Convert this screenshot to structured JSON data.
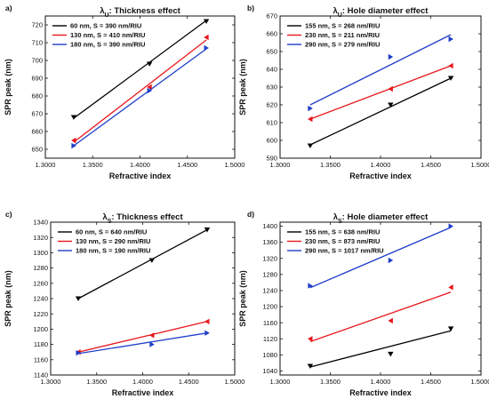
{
  "chart_data": [
    {
      "type": "line",
      "panel_label": "a)",
      "title_symbol": "λ",
      "title_sub": "U",
      "title_rest": ": Thickness effect",
      "xlabel": "Refractive index",
      "ylabel": "SPR peak (nm)",
      "xlim": [
        1.3,
        1.5
      ],
      "ylim": [
        645,
        725
      ],
      "xticks": [
        "1.3000",
        "1.3500",
        "1.4000",
        "1.4500",
        "1.5000"
      ],
      "xtick_values": [
        1.3,
        1.35,
        1.4,
        1.45,
        1.5
      ],
      "yticks": [
        "650",
        "660",
        "670",
        "680",
        "690",
        "700",
        "710",
        "720"
      ],
      "ytick_values": [
        650,
        660,
        670,
        680,
        690,
        700,
        710,
        720
      ],
      "legend_position": "top-left",
      "series": [
        {
          "name": "60 nm, S = 390 nm/RIU",
          "color": "#000000",
          "x": [
            1.33,
            1.41,
            1.47
          ],
          "y": [
            668,
            698,
            722
          ],
          "fit": [
            667.5,
            722.5
          ]
        },
        {
          "name": "130 nm, S = 410 nm/RIU",
          "color": "#e8161b",
          "x": [
            1.33,
            1.41,
            1.47
          ],
          "y": [
            655,
            685,
            713
          ],
          "fit": [
            654.0,
            711.5
          ]
        },
        {
          "name": "180 nm, S = 390 nm/RIU",
          "color": "#1f3ec8",
          "x": [
            1.33,
            1.41,
            1.47
          ],
          "y": [
            652,
            683,
            707
          ],
          "fit": [
            652.0,
            706.5
          ]
        }
      ]
    },
    {
      "type": "line",
      "panel_label": "b)",
      "title_symbol": "λ",
      "title_sub": "U",
      "title_rest": ": Hole diameter effect",
      "xlabel": "Refractive index",
      "ylabel": "SPR peak (nm)",
      "xlim": [
        1.3,
        1.5
      ],
      "ylim": [
        590,
        670
      ],
      "xticks": [
        "1.3000",
        "1.3500",
        "1.4000",
        "1.4500",
        "1.5000"
      ],
      "xtick_values": [
        1.3,
        1.35,
        1.4,
        1.45,
        1.5
      ],
      "yticks": [
        "590",
        "600",
        "610",
        "620",
        "630",
        "640",
        "650",
        "660",
        "670"
      ],
      "ytick_values": [
        590,
        600,
        610,
        620,
        630,
        640,
        650,
        660,
        670
      ],
      "legend_position": "top-left",
      "series": [
        {
          "name": "155 nm, S = 268 nm/RIU",
          "color": "#000000",
          "x": [
            1.33,
            1.41,
            1.47
          ],
          "y": [
            597,
            620,
            635
          ],
          "fit": [
            597.5,
            635.0
          ]
        },
        {
          "name": "230 nm, S = 211 nm/RIU",
          "color": "#e8161b",
          "x": [
            1.33,
            1.41,
            1.47
          ],
          "y": [
            612,
            629,
            642
          ],
          "fit": [
            612.0,
            642.0
          ]
        },
        {
          "name": "290 nm, S = 279 nm/RIU",
          "color": "#1f3ec8",
          "x": [
            1.33,
            1.41,
            1.47
          ],
          "y": [
            618,
            647,
            657
          ],
          "fit": [
            620.0,
            659.5
          ]
        }
      ]
    },
    {
      "type": "line",
      "panel_label": "c)",
      "title_symbol": "λ",
      "title_sub": "S",
      "title_rest": ": Thickness effect",
      "xlabel": "Refractive index",
      "ylabel": "SPR peak (nm)",
      "xlim": [
        1.3,
        1.5
      ],
      "ylim": [
        1140,
        1340
      ],
      "xticks": [
        "1.3000",
        "1.3500",
        "1.4000",
        "1.4500",
        "1.5000"
      ],
      "xtick_values": [
        1.3,
        1.35,
        1.4,
        1.45,
        1.5
      ],
      "yticks": [
        "1140",
        "1160",
        "1180",
        "1200",
        "1220",
        "1240",
        "1260",
        "1280",
        "1300",
        "1320",
        "1340"
      ],
      "ytick_values": [
        1140,
        1160,
        1180,
        1200,
        1220,
        1240,
        1260,
        1280,
        1300,
        1320,
        1340
      ],
      "legend_position": "top-left",
      "series": [
        {
          "name": "60 nm, S = 640 nm/RIU",
          "color": "#000000",
          "x": [
            1.33,
            1.41,
            1.47
          ],
          "y": [
            1240,
            1290,
            1330
          ],
          "fit": [
            1240,
            1330
          ]
        },
        {
          "name": "130 nm, S = 290 nm/RIU",
          "color": "#e8161b",
          "x": [
            1.33,
            1.41,
            1.47
          ],
          "y": [
            1170,
            1192,
            1210
          ],
          "fit": [
            1170,
            1210
          ]
        },
        {
          "name": "180 nm, S = 190 nm/RIU",
          "color": "#1f3ec8",
          "x": [
            1.33,
            1.41,
            1.47
          ],
          "y": [
            1169,
            1180,
            1195
          ],
          "fit": [
            1168,
            1195
          ]
        }
      ]
    },
    {
      "type": "line",
      "panel_label": "d)",
      "title_symbol": "λ",
      "title_sub": "S",
      "title_rest": ": Hole diameter effect",
      "xlabel": "Refractive index",
      "ylabel": "SPR peak (nm)",
      "xlim": [
        1.3,
        1.5
      ],
      "ylim": [
        1030,
        1410
      ],
      "xticks": [
        "1.3000",
        "1.3500",
        "1.4000",
        "1.4500",
        "1.5000"
      ],
      "xtick_values": [
        1.3,
        1.35,
        1.4,
        1.45,
        1.5
      ],
      "yticks": [
        "1040",
        "1080",
        "1120",
        "1160",
        "1200",
        "1240",
        "1280",
        "1320",
        "1360",
        "1400"
      ],
      "ytick_values": [
        1040,
        1080,
        1120,
        1160,
        1200,
        1240,
        1280,
        1320,
        1360,
        1400
      ],
      "legend_position": "top-left",
      "series": [
        {
          "name": "155 nm, S = 638 nm/RIU",
          "color": "#000000",
          "x": [
            1.33,
            1.41,
            1.47
          ],
          "y": [
            1052,
            1082,
            1145
          ],
          "fit": [
            1050,
            1140
          ]
        },
        {
          "name": "230 nm, S = 873 nm/RIU",
          "color": "#e8161b",
          "x": [
            1.33,
            1.41,
            1.47
          ],
          "y": [
            1120,
            1165,
            1248
          ],
          "fit": [
            1113,
            1236
          ]
        },
        {
          "name": "290 nm, S = 1017 nm/RIU",
          "color": "#1f3ec8",
          "x": [
            1.33,
            1.41,
            1.47
          ],
          "y": [
            1252,
            1315,
            1400
          ],
          "fit": [
            1247,
            1397
          ]
        }
      ]
    }
  ]
}
